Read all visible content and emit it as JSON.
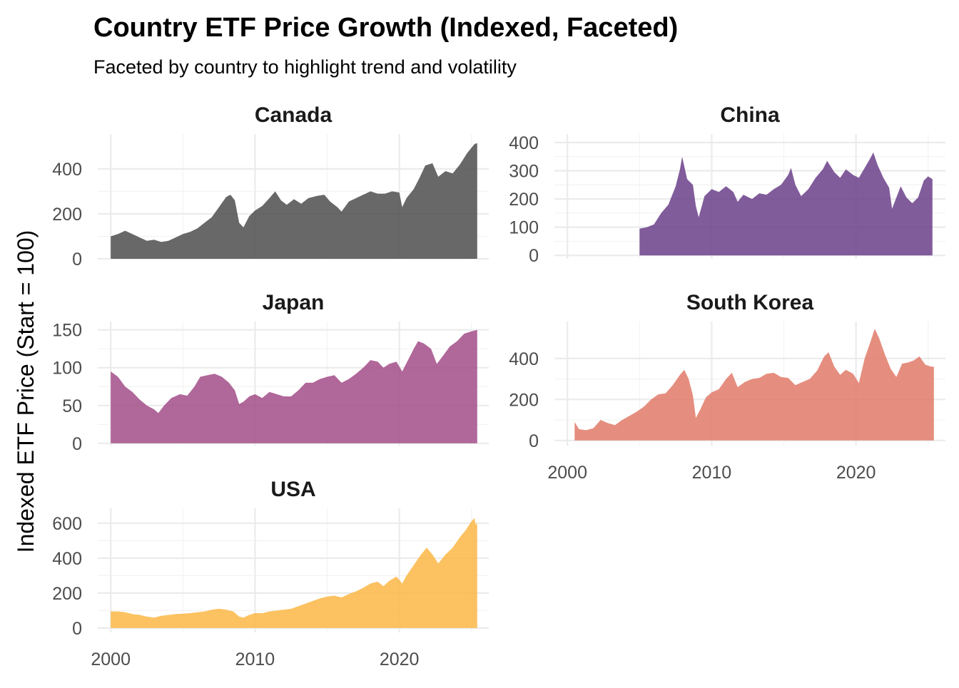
{
  "title": "Country ETF Price Growth (Indexed, Faceted)",
  "subtitle": "Faceted by country to highlight trend and volatility",
  "ylabel": "Indexed ETF Price (Start = 100)",
  "xlabel": "",
  "chart_data": {
    "type": "area",
    "title": "Country ETF Price Growth (Indexed, Faceted)",
    "subtitle": "Faceted by country to highlight trend and volatility",
    "xlabel": "",
    "ylabel": "Indexed ETF Price (Start = 100)",
    "xlim": [
      1999.1,
      2026.2
    ],
    "x_ticks": [
      2000,
      2010,
      2020
    ],
    "grid": true,
    "legend": "none",
    "series": [
      {
        "name": "Canada",
        "color": "#4d4d4d",
        "ylim": [
          0,
          555
        ],
        "y_ticks": [
          0,
          200,
          400
        ],
        "points": [
          [
            2000.0,
            100
          ],
          [
            2000.5,
            110
          ],
          [
            2001.0,
            125
          ],
          [
            2001.5,
            110
          ],
          [
            2002.0,
            95
          ],
          [
            2002.5,
            80
          ],
          [
            2003.0,
            85
          ],
          [
            2003.5,
            75
          ],
          [
            2004.0,
            80
          ],
          [
            2004.5,
            95
          ],
          [
            2005.0,
            110
          ],
          [
            2005.5,
            120
          ],
          [
            2006.0,
            135
          ],
          [
            2006.5,
            160
          ],
          [
            2007.0,
            185
          ],
          [
            2007.5,
            230
          ],
          [
            2008.0,
            275
          ],
          [
            2008.3,
            285
          ],
          [
            2008.6,
            260
          ],
          [
            2008.9,
            160
          ],
          [
            2009.2,
            140
          ],
          [
            2009.6,
            190
          ],
          [
            2010.0,
            215
          ],
          [
            2010.5,
            235
          ],
          [
            2011.0,
            270
          ],
          [
            2011.4,
            300
          ],
          [
            2011.8,
            260
          ],
          [
            2012.2,
            240
          ],
          [
            2012.7,
            265
          ],
          [
            2013.2,
            245
          ],
          [
            2013.7,
            270
          ],
          [
            2014.3,
            280
          ],
          [
            2014.8,
            285
          ],
          [
            2015.2,
            255
          ],
          [
            2015.7,
            230
          ],
          [
            2016.0,
            210
          ],
          [
            2016.5,
            255
          ],
          [
            2017.0,
            270
          ],
          [
            2017.5,
            285
          ],
          [
            2018.0,
            300
          ],
          [
            2018.5,
            290
          ],
          [
            2019.0,
            290
          ],
          [
            2019.5,
            300
          ],
          [
            2020.0,
            295
          ],
          [
            2020.2,
            230
          ],
          [
            2020.5,
            270
          ],
          [
            2021.0,
            310
          ],
          [
            2021.4,
            360
          ],
          [
            2021.8,
            415
          ],
          [
            2022.3,
            425
          ],
          [
            2022.7,
            365
          ],
          [
            2023.2,
            390
          ],
          [
            2023.7,
            380
          ],
          [
            2024.2,
            420
          ],
          [
            2024.7,
            470
          ],
          [
            2025.2,
            510
          ],
          [
            2025.4,
            515
          ]
        ]
      },
      {
        "name": "China",
        "color": "#6b3f8a",
        "ylim": [
          -12,
          430
        ],
        "y_ticks": [
          0,
          100,
          200,
          300,
          400
        ],
        "points": [
          [
            2005.0,
            95
          ],
          [
            2005.5,
            100
          ],
          [
            2006.0,
            110
          ],
          [
            2006.5,
            150
          ],
          [
            2007.0,
            180
          ],
          [
            2007.5,
            245
          ],
          [
            2007.8,
            305
          ],
          [
            2007.95,
            350
          ],
          [
            2008.3,
            270
          ],
          [
            2008.7,
            250
          ],
          [
            2008.9,
            175
          ],
          [
            2009.1,
            135
          ],
          [
            2009.5,
            210
          ],
          [
            2010.0,
            235
          ],
          [
            2010.5,
            225
          ],
          [
            2011.0,
            245
          ],
          [
            2011.5,
            225
          ],
          [
            2011.8,
            190
          ],
          [
            2012.2,
            215
          ],
          [
            2012.8,
            200
          ],
          [
            2013.3,
            220
          ],
          [
            2013.8,
            215
          ],
          [
            2014.3,
            235
          ],
          [
            2014.8,
            250
          ],
          [
            2015.3,
            285
          ],
          [
            2015.5,
            310
          ],
          [
            2015.8,
            250
          ],
          [
            2016.2,
            210
          ],
          [
            2016.7,
            235
          ],
          [
            2017.2,
            275
          ],
          [
            2017.7,
            305
          ],
          [
            2018.0,
            335
          ],
          [
            2018.5,
            295
          ],
          [
            2018.9,
            275
          ],
          [
            2019.3,
            305
          ],
          [
            2019.8,
            285
          ],
          [
            2020.2,
            275
          ],
          [
            2020.6,
            310
          ],
          [
            2021.0,
            345
          ],
          [
            2021.2,
            365
          ],
          [
            2021.5,
            320
          ],
          [
            2021.9,
            275
          ],
          [
            2022.3,
            240
          ],
          [
            2022.5,
            165
          ],
          [
            2022.8,
            205
          ],
          [
            2023.1,
            245
          ],
          [
            2023.5,
            205
          ],
          [
            2023.9,
            185
          ],
          [
            2024.3,
            205
          ],
          [
            2024.7,
            265
          ],
          [
            2025.0,
            280
          ],
          [
            2025.3,
            270
          ]
        ]
      },
      {
        "name": "Japan",
        "color": "#a24c87",
        "ylim": [
          -3,
          161
        ],
        "y_ticks": [
          0,
          50,
          100,
          150
        ],
        "points": [
          [
            2000.0,
            95
          ],
          [
            2000.5,
            88
          ],
          [
            2001.0,
            75
          ],
          [
            2001.5,
            68
          ],
          [
            2002.0,
            58
          ],
          [
            2002.5,
            50
          ],
          [
            2003.0,
            45
          ],
          [
            2003.3,
            40
          ],
          [
            2003.7,
            50
          ],
          [
            2004.2,
            60
          ],
          [
            2004.8,
            65
          ],
          [
            2005.3,
            63
          ],
          [
            2005.8,
            75
          ],
          [
            2006.2,
            88
          ],
          [
            2006.7,
            90
          ],
          [
            2007.2,
            92
          ],
          [
            2007.7,
            88
          ],
          [
            2008.2,
            80
          ],
          [
            2008.6,
            70
          ],
          [
            2008.9,
            52
          ],
          [
            2009.2,
            55
          ],
          [
            2009.6,
            62
          ],
          [
            2010.0,
            65
          ],
          [
            2010.5,
            60
          ],
          [
            2011.0,
            68
          ],
          [
            2011.5,
            65
          ],
          [
            2012.0,
            62
          ],
          [
            2012.5,
            62
          ],
          [
            2013.0,
            70
          ],
          [
            2013.5,
            80
          ],
          [
            2014.0,
            80
          ],
          [
            2014.5,
            85
          ],
          [
            2015.0,
            88
          ],
          [
            2015.5,
            90
          ],
          [
            2016.0,
            80
          ],
          [
            2016.5,
            85
          ],
          [
            2017.0,
            92
          ],
          [
            2017.5,
            100
          ],
          [
            2018.0,
            110
          ],
          [
            2018.5,
            108
          ],
          [
            2018.9,
            100
          ],
          [
            2019.3,
            105
          ],
          [
            2019.8,
            108
          ],
          [
            2020.2,
            95
          ],
          [
            2020.6,
            110
          ],
          [
            2021.0,
            125
          ],
          [
            2021.3,
            135
          ],
          [
            2021.7,
            132
          ],
          [
            2022.2,
            125
          ],
          [
            2022.6,
            105
          ],
          [
            2023.0,
            115
          ],
          [
            2023.5,
            128
          ],
          [
            2024.0,
            135
          ],
          [
            2024.5,
            145
          ],
          [
            2025.0,
            148
          ],
          [
            2025.4,
            150
          ]
        ]
      },
      {
        "name": "South Korea",
        "color": "#e07a68",
        "ylim": [
          -25,
          580
        ],
        "y_ticks": [
          0,
          200,
          400
        ],
        "points": [
          [
            2000.5,
            90
          ],
          [
            2000.8,
            55
          ],
          [
            2001.3,
            50
          ],
          [
            2001.8,
            60
          ],
          [
            2002.3,
            100
          ],
          [
            2002.8,
            85
          ],
          [
            2003.3,
            75
          ],
          [
            2003.8,
            100
          ],
          [
            2004.3,
            120
          ],
          [
            2004.8,
            140
          ],
          [
            2005.3,
            165
          ],
          [
            2005.8,
            200
          ],
          [
            2006.3,
            225
          ],
          [
            2006.8,
            230
          ],
          [
            2007.3,
            270
          ],
          [
            2007.8,
            320
          ],
          [
            2008.1,
            345
          ],
          [
            2008.4,
            300
          ],
          [
            2008.7,
            220
          ],
          [
            2008.9,
            110
          ],
          [
            2009.2,
            150
          ],
          [
            2009.6,
            210
          ],
          [
            2010.0,
            235
          ],
          [
            2010.5,
            250
          ],
          [
            2011.0,
            300
          ],
          [
            2011.4,
            330
          ],
          [
            2011.8,
            260
          ],
          [
            2012.3,
            285
          ],
          [
            2012.8,
            300
          ],
          [
            2013.3,
            305
          ],
          [
            2013.8,
            325
          ],
          [
            2014.3,
            330
          ],
          [
            2014.8,
            310
          ],
          [
            2015.3,
            305
          ],
          [
            2015.8,
            270
          ],
          [
            2016.3,
            285
          ],
          [
            2016.8,
            300
          ],
          [
            2017.3,
            340
          ],
          [
            2017.8,
            410
          ],
          [
            2018.1,
            430
          ],
          [
            2018.5,
            360
          ],
          [
            2018.9,
            320
          ],
          [
            2019.3,
            345
          ],
          [
            2019.8,
            325
          ],
          [
            2020.2,
            280
          ],
          [
            2020.6,
            400
          ],
          [
            2021.0,
            480
          ],
          [
            2021.3,
            545
          ],
          [
            2021.6,
            500
          ],
          [
            2022.0,
            420
          ],
          [
            2022.4,
            350
          ],
          [
            2022.8,
            310
          ],
          [
            2023.2,
            375
          ],
          [
            2023.6,
            380
          ],
          [
            2024.0,
            390
          ],
          [
            2024.4,
            410
          ],
          [
            2024.8,
            370
          ],
          [
            2025.2,
            360
          ],
          [
            2025.4,
            360
          ]
        ]
      },
      {
        "name": "USA",
        "color": "#fbb745",
        "ylim": [
          -25,
          685
        ],
        "y_ticks": [
          0,
          200,
          400,
          600
        ],
        "points": [
          [
            2000.0,
            95
          ],
          [
            2000.5,
            95
          ],
          [
            2001.0,
            90
          ],
          [
            2001.5,
            80
          ],
          [
            2002.0,
            75
          ],
          [
            2002.5,
            65
          ],
          [
            2003.0,
            60
          ],
          [
            2003.5,
            70
          ],
          [
            2004.0,
            75
          ],
          [
            2004.5,
            80
          ],
          [
            2005.0,
            82
          ],
          [
            2005.5,
            85
          ],
          [
            2006.0,
            90
          ],
          [
            2006.5,
            95
          ],
          [
            2007.0,
            105
          ],
          [
            2007.5,
            110
          ],
          [
            2008.0,
            105
          ],
          [
            2008.5,
            95
          ],
          [
            2008.9,
            65
          ],
          [
            2009.2,
            60
          ],
          [
            2009.6,
            75
          ],
          [
            2010.0,
            85
          ],
          [
            2010.5,
            85
          ],
          [
            2011.0,
            95
          ],
          [
            2011.5,
            100
          ],
          [
            2012.0,
            105
          ],
          [
            2012.5,
            110
          ],
          [
            2013.0,
            125
          ],
          [
            2013.5,
            140
          ],
          [
            2014.0,
            155
          ],
          [
            2014.5,
            170
          ],
          [
            2015.0,
            180
          ],
          [
            2015.5,
            185
          ],
          [
            2016.0,
            175
          ],
          [
            2016.5,
            195
          ],
          [
            2017.0,
            210
          ],
          [
            2017.5,
            230
          ],
          [
            2018.0,
            255
          ],
          [
            2018.5,
            265
          ],
          [
            2018.9,
            240
          ],
          [
            2019.3,
            270
          ],
          [
            2019.8,
            295
          ],
          [
            2020.2,
            255
          ],
          [
            2020.5,
            300
          ],
          [
            2021.0,
            360
          ],
          [
            2021.5,
            420
          ],
          [
            2021.9,
            460
          ],
          [
            2022.3,
            420
          ],
          [
            2022.7,
            370
          ],
          [
            2023.2,
            420
          ],
          [
            2023.7,
            460
          ],
          [
            2024.2,
            520
          ],
          [
            2024.6,
            560
          ],
          [
            2025.0,
            610
          ],
          [
            2025.2,
            630
          ],
          [
            2025.3,
            590
          ],
          [
            2025.4,
            600
          ]
        ]
      }
    ]
  }
}
